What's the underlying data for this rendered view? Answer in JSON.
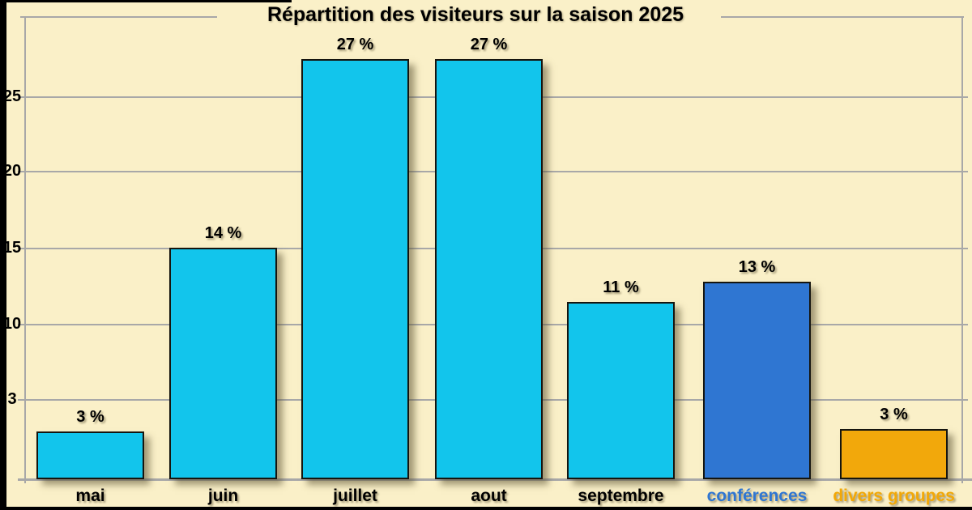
{
  "page": {
    "title_label": "Répartition des visiteurs sur la saison 2025"
  },
  "colors": {
    "background": "#FAF0C8",
    "frame_black": "#000000",
    "grid": "#A8A8A8",
    "bar_cyan": "#12C5EC",
    "bar_blue": "#2F76D2",
    "bar_orange": "#F2A80B",
    "text_black": "#000000",
    "label_blue": "#2F76D2",
    "label_orange": "#F2A807",
    "shadow": "rgba(90,80,50,0.55)"
  },
  "chart_data": {
    "type": "bar",
    "title": "Répartition des visiteurs sur la saison 2025",
    "categories": [
      "mai",
      "juin",
      "juillet",
      "aout",
      "septembre",
      "conférences",
      "divers groupes"
    ],
    "values": [
      3,
      14,
      27,
      27,
      11,
      13,
      3
    ],
    "value_labels": [
      "3 %",
      "14 %",
      "27 %",
      "27 %",
      "11 %",
      "13 %",
      "3 %"
    ],
    "unit": "%",
    "bar_color_keys": [
      "bar_cyan",
      "bar_cyan",
      "bar_cyan",
      "bar_cyan",
      "bar_cyan",
      "bar_blue",
      "bar_orange"
    ],
    "category_color_keys": [
      "text_black",
      "text_black",
      "text_black",
      "text_black",
      "text_black",
      "label_blue",
      "label_orange"
    ],
    "yticks": [
      25,
      20,
      15,
      10,
      3
    ],
    "ylim": [
      0,
      29
    ],
    "xlabel": "",
    "ylabel": "",
    "grid": "horizontal",
    "legend": "none"
  }
}
